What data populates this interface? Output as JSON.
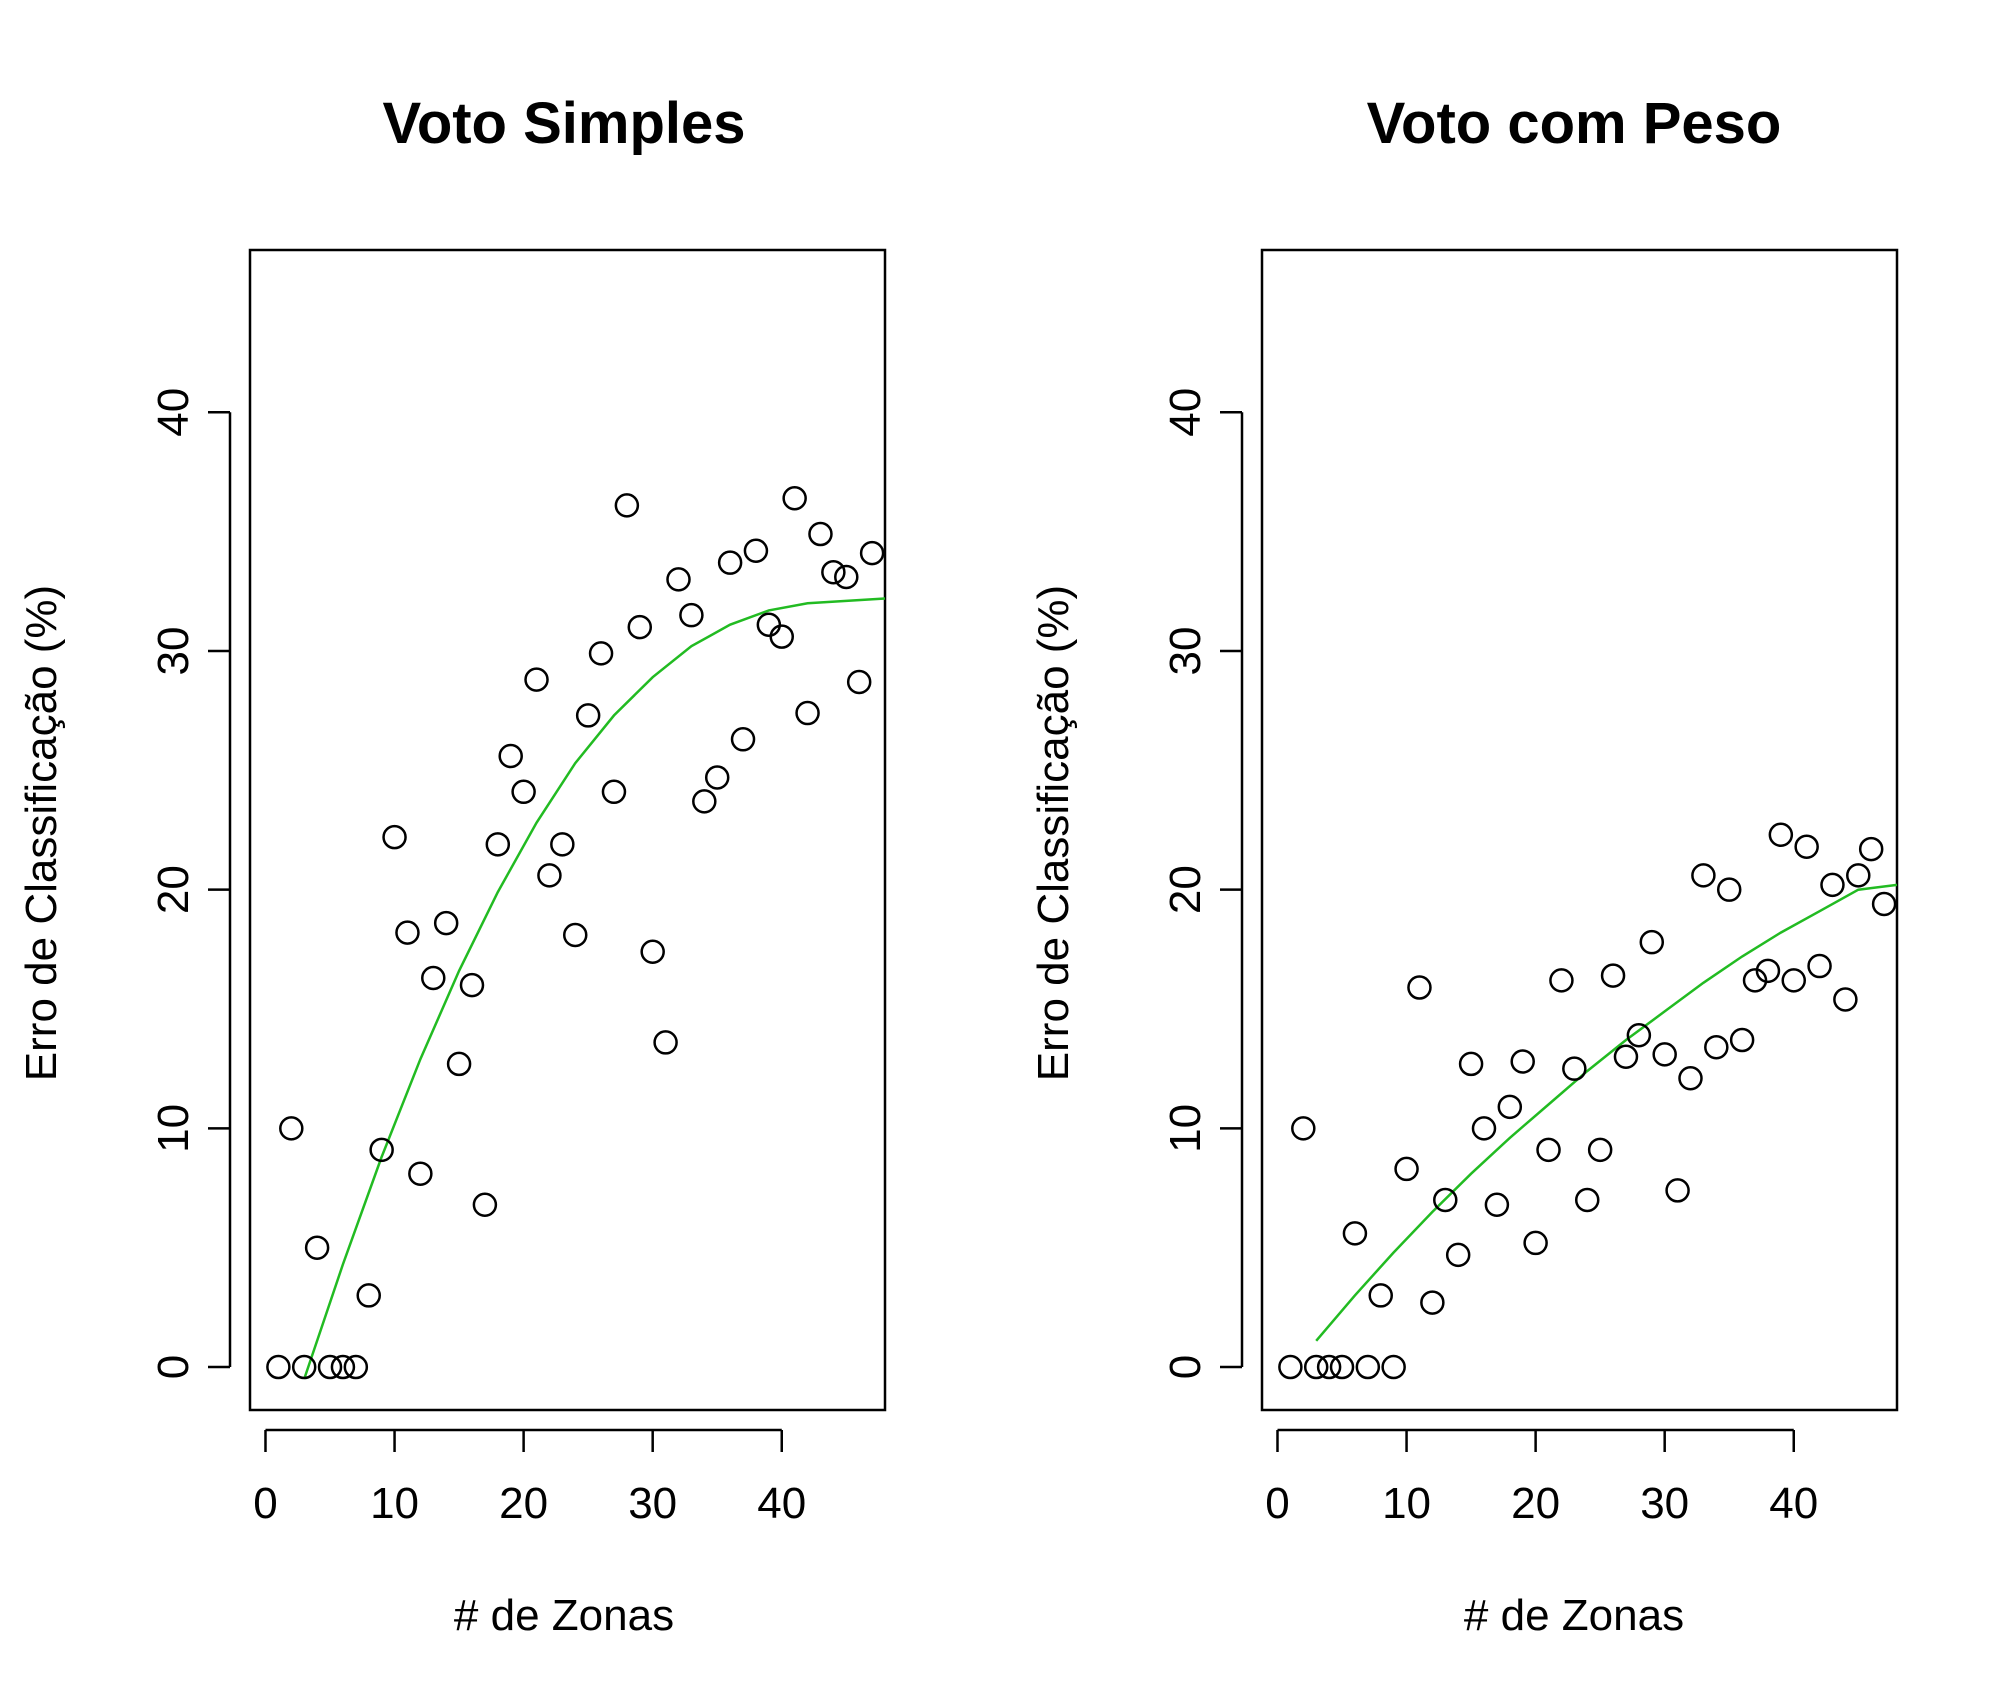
{
  "chart_data": [
    {
      "type": "scatter",
      "title": "Voto Simples",
      "xlabel": "# de Zonas",
      "ylabel": "Erro de Classificação (%)",
      "xlim": [
        0,
        48
      ],
      "ylim": [
        0,
        45
      ],
      "xticks": [
        0,
        10,
        20,
        30,
        40
      ],
      "yticks": [
        0,
        10,
        20,
        30,
        40
      ],
      "grid": false,
      "point_color": "#000000",
      "fit_color": "#22bb22",
      "points": {
        "x": [
          1,
          2,
          3,
          4,
          5,
          6,
          7,
          8,
          9,
          10,
          11,
          12,
          13,
          14,
          15,
          16,
          17,
          18,
          19,
          20,
          21,
          22,
          23,
          24,
          25,
          26,
          27,
          28,
          29,
          30,
          31,
          32,
          33,
          34,
          35,
          36,
          37,
          38,
          39,
          40,
          41,
          42,
          43,
          44,
          45,
          46,
          47
        ],
        "y": [
          0,
          10,
          0,
          5,
          0,
          0,
          0,
          3,
          9.1,
          22.2,
          18.2,
          8.1,
          16.3,
          18.6,
          12.7,
          16,
          6.8,
          21.9,
          25.6,
          24.1,
          28.8,
          20.6,
          21.9,
          18.1,
          27.3,
          29.9,
          24.1,
          36.1,
          31,
          17.4,
          13.6,
          33,
          31.5,
          23.7,
          24.7,
          33.7,
          26.3,
          34.2,
          31.1,
          30.6,
          36.4,
          27.4,
          34.9,
          33.3,
          33.1,
          28.7,
          34.1
        ]
      },
      "fit": {
        "x": [
          3,
          6,
          9,
          12,
          15,
          18,
          21,
          24,
          27,
          30,
          33,
          36,
          39,
          42,
          45,
          48
        ],
        "y": [
          -0.5,
          4.3,
          8.8,
          12.9,
          16.6,
          19.9,
          22.8,
          25.3,
          27.3,
          28.9,
          30.2,
          31.1,
          31.7,
          32.0,
          32.1,
          32.2
        ]
      }
    },
    {
      "type": "scatter",
      "title": "Voto com Peso",
      "xlabel": "# de Zonas",
      "ylabel": "Erro de Classificação (%)",
      "xlim": [
        0,
        48
      ],
      "ylim": [
        0,
        45
      ],
      "xticks": [
        0,
        10,
        20,
        30,
        40
      ],
      "yticks": [
        0,
        10,
        20,
        30,
        40
      ],
      "grid": false,
      "point_color": "#000000",
      "fit_color": "#22bb22",
      "points": {
        "x": [
          1,
          2,
          3,
          4,
          5,
          6,
          7,
          8,
          9,
          10,
          11,
          12,
          13,
          14,
          15,
          16,
          17,
          18,
          19,
          20,
          21,
          22,
          23,
          24,
          25,
          26,
          27,
          28,
          29,
          30,
          31,
          32,
          33,
          34,
          35,
          36,
          37,
          38,
          39,
          40,
          41,
          42,
          43,
          44,
          45,
          46,
          47
        ],
        "y": [
          0,
          10,
          0,
          0,
          0,
          5.6,
          0,
          3,
          0,
          8.3,
          15.9,
          2.7,
          7,
          4.7,
          12.7,
          10,
          6.8,
          10.9,
          12.8,
          5.2,
          9.1,
          16.2,
          12.5,
          7,
          9.1,
          16.4,
          13,
          13.9,
          17.8,
          13.1,
          7.4,
          12.1,
          20.6,
          13.4,
          20,
          13.7,
          16.2,
          16.6,
          22.3,
          16.2,
          21.8,
          16.8,
          20.2,
          15.4,
          20.6,
          21.7,
          19.4
        ]
      },
      "fit": {
        "x": [
          3,
          6,
          9,
          12,
          15,
          18,
          21,
          24,
          27,
          30,
          33,
          36,
          39,
          42,
          45,
          48
        ],
        "y": [
          1.1,
          3.0,
          4.8,
          6.5,
          8.1,
          9.6,
          11.0,
          12.4,
          13.7,
          14.9,
          16.1,
          17.2,
          18.2,
          19.1,
          20.0,
          20.2
        ]
      }
    }
  ]
}
